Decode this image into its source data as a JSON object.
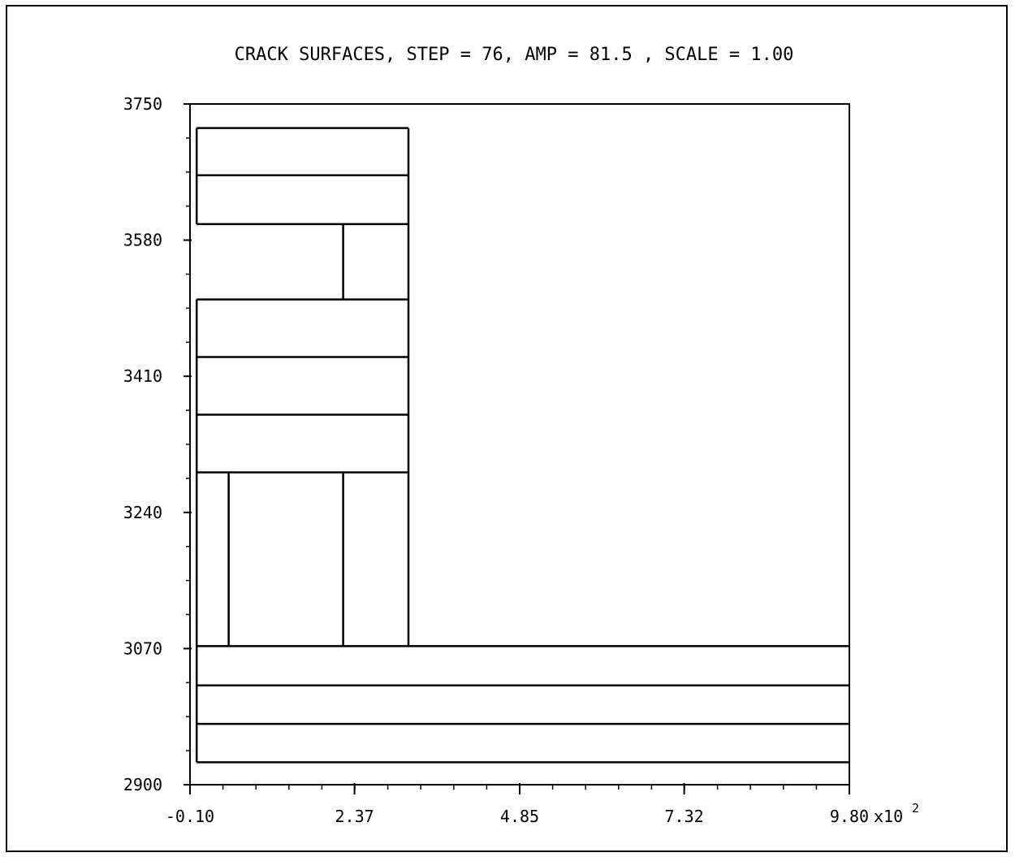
{
  "chart_data": {
    "type": "line",
    "title": "CRACK SURFACES, STEP = 76, AMP = 81.5 , SCALE = 1.00",
    "xlabel": "",
    "ylabel": "",
    "xlim": [
      -0.1,
      9.8
    ],
    "ylim": [
      2900,
      3750
    ],
    "x_ticks": [
      -0.1,
      2.37,
      4.85,
      7.32,
      9.8
    ],
    "x_tick_labels": [
      "-0.10",
      "2.37",
      "4.85",
      "7.32",
      "9.80"
    ],
    "x_exponent_label": "x10",
    "x_exponent_power": "2",
    "y_ticks": [
      2900,
      3070,
      3240,
      3410,
      3580,
      3750
    ],
    "y_tick_labels": [
      "2900",
      "3070",
      "3240",
      "3410",
      "3580",
      "3750"
    ],
    "x_minor_step": 0.495,
    "y_minor_step": 42.5,
    "grid": false,
    "legend": "none",
    "color": "#000000",
    "segments": [
      {
        "x": [
          0.0,
          0.0
        ],
        "y": [
          3720,
          3600
        ]
      },
      {
        "x": [
          3.18,
          3.18
        ],
        "y": [
          3720,
          3073
        ]
      },
      {
        "x": [
          0.0,
          3.18
        ],
        "y": [
          3720,
          3720
        ]
      },
      {
        "x": [
          0.0,
          3.18
        ],
        "y": [
          3661,
          3661
        ]
      },
      {
        "x": [
          0.0,
          3.18
        ],
        "y": [
          3600,
          3600
        ]
      },
      {
        "x": [
          2.2,
          2.2
        ],
        "y": [
          3600,
          3506
        ]
      },
      {
        "x": [
          0.0,
          0.0
        ],
        "y": [
          3506,
          3073
        ]
      },
      {
        "x": [
          0.0,
          3.18
        ],
        "y": [
          3506,
          3506
        ]
      },
      {
        "x": [
          0.0,
          3.18
        ],
        "y": [
          3434,
          3434
        ]
      },
      {
        "x": [
          0.0,
          3.18
        ],
        "y": [
          3362,
          3362
        ]
      },
      {
        "x": [
          0.0,
          3.18
        ],
        "y": [
          3290,
          3290
        ]
      },
      {
        "x": [
          0.48,
          0.48
        ],
        "y": [
          3290,
          3073
        ]
      },
      {
        "x": [
          2.2,
          2.2
        ],
        "y": [
          3290,
          3073
        ]
      },
      {
        "x": [
          0.0,
          9.8
        ],
        "y": [
          3073,
          3073
        ]
      },
      {
        "x": [
          0.0,
          9.8
        ],
        "y": [
          3024,
          3024
        ]
      },
      {
        "x": [
          0.0,
          9.8
        ],
        "y": [
          2976,
          2976
        ]
      },
      {
        "x": [
          0.0,
          9.8
        ],
        "y": [
          2928,
          2928
        ]
      },
      {
        "x": [
          0.0,
          0.0
        ],
        "y": [
          3073,
          2928
        ]
      }
    ]
  }
}
